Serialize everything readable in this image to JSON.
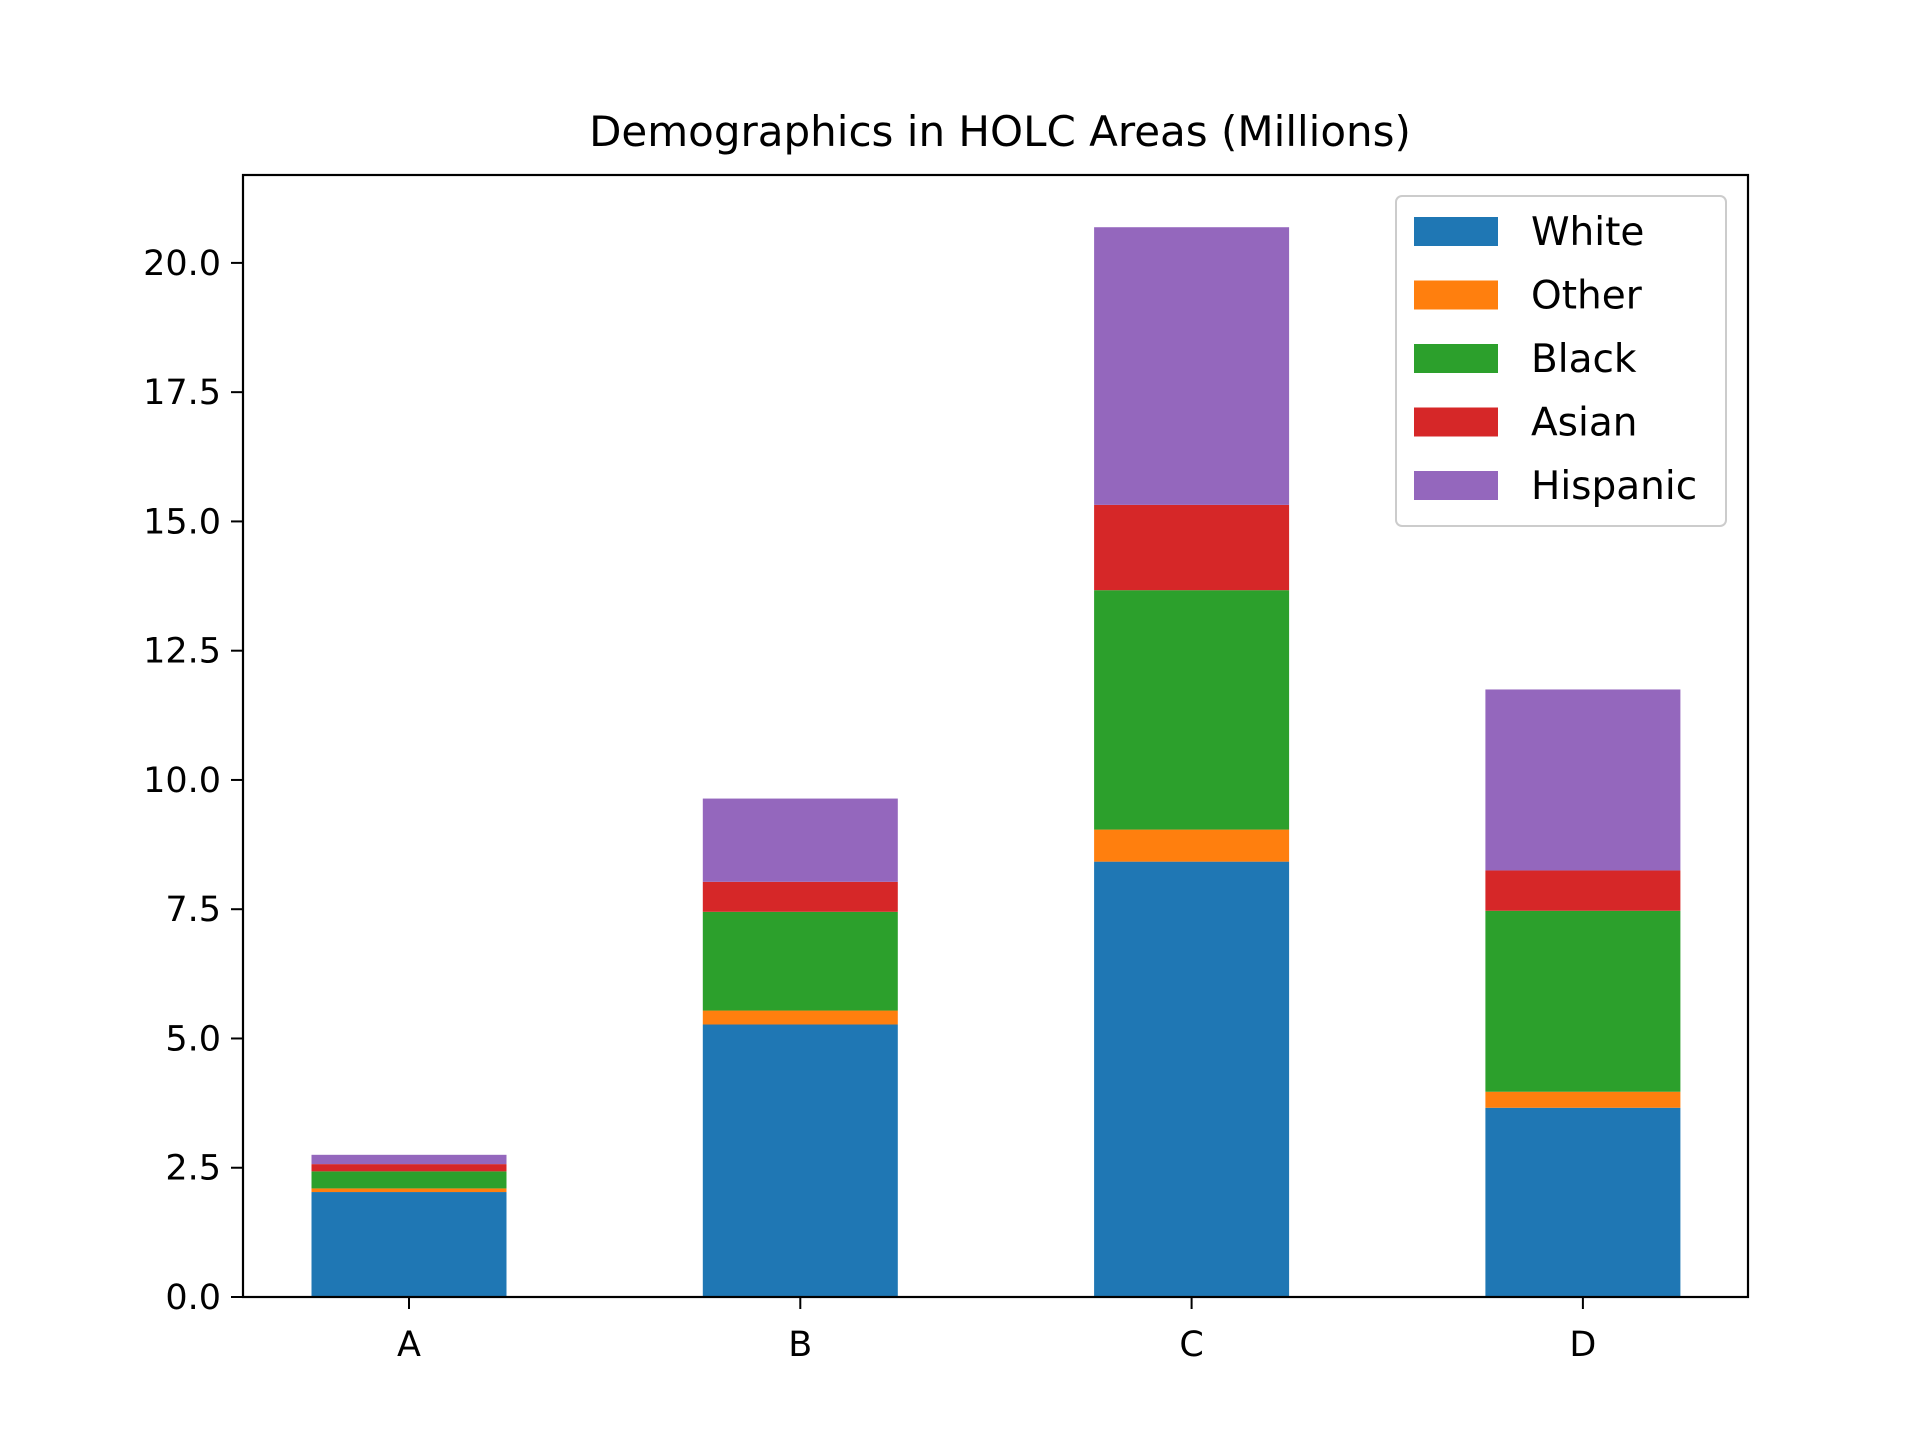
{
  "chart_data": {
    "type": "bar",
    "stacked": true,
    "title": "Demographics in HOLC Areas (Millions)",
    "xlabel": "",
    "ylabel": "",
    "categories": [
      "A",
      "B",
      "C",
      "D"
    ],
    "ylim": [
      0,
      21.7
    ],
    "yticks": [
      0.0,
      2.5,
      5.0,
      7.5,
      10.0,
      12.5,
      15.0,
      17.5,
      20.0
    ],
    "ytick_labels": [
      "0.0",
      "2.5",
      "5.0",
      "7.5",
      "10.0",
      "12.5",
      "15.0",
      "17.5",
      "20.0"
    ],
    "series": [
      {
        "name": "White",
        "color": "#1f77b4",
        "values": [
          2.03,
          5.27,
          8.42,
          3.66
        ]
      },
      {
        "name": "Other",
        "color": "#ff7f0e",
        "values": [
          0.07,
          0.27,
          0.62,
          0.31
        ]
      },
      {
        "name": "Black",
        "color": "#2ca02c",
        "values": [
          0.33,
          1.91,
          4.63,
          3.5
        ]
      },
      {
        "name": "Asian",
        "color": "#d62728",
        "values": [
          0.14,
          0.58,
          1.65,
          0.78
        ]
      },
      {
        "name": "Hispanic",
        "color": "#9467bd",
        "values": [
          0.18,
          1.61,
          5.37,
          3.5
        ]
      }
    ],
    "grid": false,
    "legend_position": "top-right"
  }
}
